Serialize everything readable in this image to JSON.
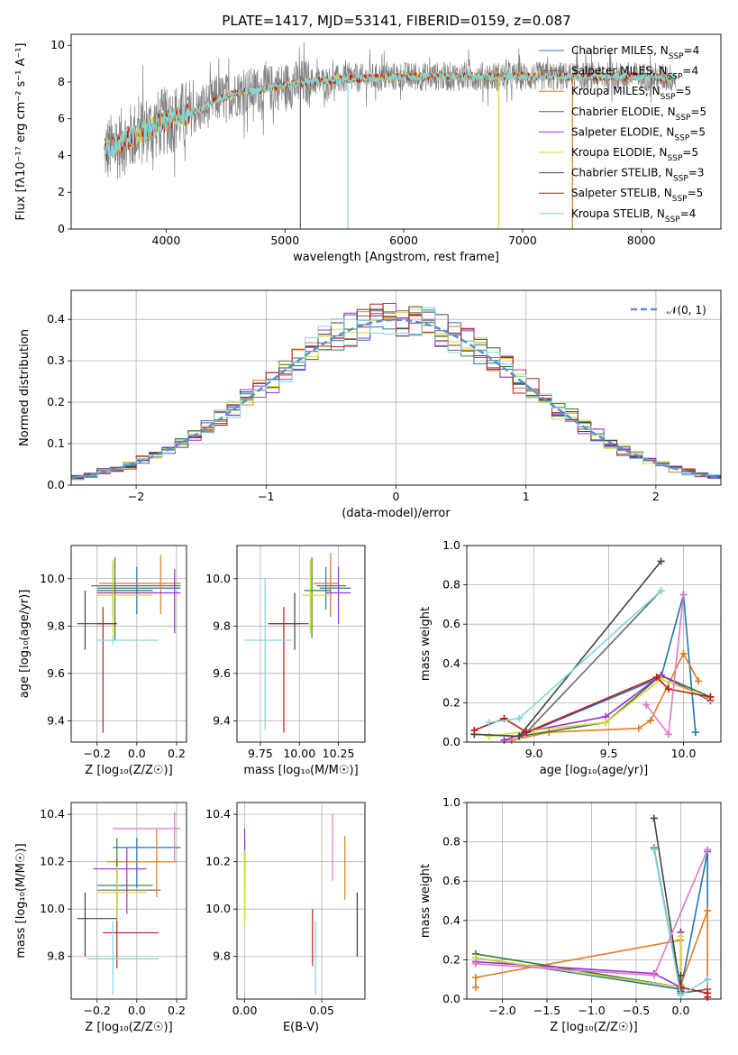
{
  "figure_title": "PLATE=1417, MJD=53141, FIBERID=0159, z=0.087",
  "series": [
    {
      "name": "Chabrier MILES",
      "nssp": "4",
      "color": "#1f77b4"
    },
    {
      "name": "Salpeter MILES",
      "nssp": "4",
      "color": "#6a6a6a"
    },
    {
      "name": "Kroupa MILES",
      "nssp": "5",
      "color": "#e07b20"
    },
    {
      "name": "Chabrier ELODIE",
      "nssp": "5",
      "color": "#2e7d32"
    },
    {
      "name": "Salpeter ELODIE",
      "nssp": "5",
      "color": "#9b30d0"
    },
    {
      "name": "Kroupa ELODIE",
      "nssp": "5",
      "color": "#d7d732"
    },
    {
      "name": "Chabrier STELIB",
      "nssp": "3",
      "color": "#444444"
    },
    {
      "name": "Salpeter STELIB",
      "nssp": "5",
      "color": "#c01818"
    },
    {
      "name": "Kroupa STELIB",
      "nssp": "4",
      "color": "#7fd6dc"
    }
  ],
  "chart_data": [
    {
      "id": "spectrum",
      "type": "line",
      "xlabel": "wavelength [Angstrom, rest frame]",
      "ylabel": "Flux [fλ10⁻¹⁷ erg cm⁻² s⁻¹ A⁻¹]",
      "xlim": [
        3200,
        8670
      ],
      "ylim": [
        0,
        10.6
      ],
      "xticks": [
        4000,
        5000,
        6000,
        7000,
        8000
      ],
      "yticks": [
        0,
        2,
        4,
        6,
        8,
        10
      ],
      "grid": false,
      "legend": "right",
      "continuum": [
        [
          3500,
          4.3
        ],
        [
          3600,
          4.6
        ],
        [
          3700,
          5.0
        ],
        [
          3800,
          5.3
        ],
        [
          3900,
          5.6
        ],
        [
          4000,
          5.9
        ],
        [
          4100,
          6.1
        ],
        [
          4200,
          6.3
        ],
        [
          4300,
          6.5
        ],
        [
          4400,
          7.0
        ],
        [
          4600,
          7.4
        ],
        [
          4800,
          7.6
        ],
        [
          5000,
          7.8
        ],
        [
          5200,
          8.0
        ],
        [
          5400,
          8.1
        ],
        [
          5600,
          8.2
        ],
        [
          6000,
          8.3
        ],
        [
          6500,
          8.3
        ],
        [
          7000,
          8.3
        ],
        [
          7500,
          8.3
        ],
        [
          8000,
          8.3
        ],
        [
          8300,
          8.2
        ]
      ],
      "data_range": [
        3480,
        8290
      ],
      "spikes": [
        {
          "x": 5130,
          "ylo": 0,
          "series": "Salpeter MILES"
        },
        {
          "x": 5530,
          "ylo": 0,
          "series": "Kroupa STELIB"
        },
        {
          "x": 6800,
          "ylo": 0,
          "series": "Kroupa ELODIE"
        },
        {
          "x": 7420,
          "ylo": 0,
          "series": "Kroupa MILES"
        }
      ]
    },
    {
      "id": "residuals",
      "type": "line",
      "xlabel": "(data-model)/error",
      "ylabel": "Normed distribution",
      "xlim": [
        -2.5,
        2.5
      ],
      "ylim": [
        0,
        0.47
      ],
      "xticks": [
        -2,
        -1,
        0,
        1,
        2
      ],
      "yticks": [
        0,
        0.1,
        0.2,
        0.3,
        0.4
      ],
      "grid": true,
      "legend": "top-right",
      "gaussian_label": "𝒩(0, 1)"
    },
    {
      "id": "age_vs_Z",
      "type": "scatter",
      "xlabel": "Z [log₁₀(Z/Z☉)]",
      "ylabel": "age  [log₁₀(age/yr)]",
      "xlim": [
        -0.33,
        0.25
      ],
      "ylim": [
        9.31,
        10.14
      ],
      "xticks": [
        -0.2,
        0.0,
        0.2
      ],
      "yticks": [
        9.4,
        9.6,
        9.8,
        10.0
      ],
      "grid": true,
      "points": [
        {
          "series": "Chabrier MILES",
          "x": 0.0,
          "xe": [
            -0.2,
            0.22
          ],
          "y": 9.96,
          "ye": [
            9.85,
            10.05
          ]
        },
        {
          "series": "Salpeter MILES",
          "x": -0.12,
          "xe": [
            -0.23,
            0.22
          ],
          "y": 9.97,
          "ye": [
            9.84,
            10.07
          ]
        },
        {
          "series": "Kroupa MILES",
          "x": 0.12,
          "xe": [
            -0.19,
            0.22
          ],
          "y": 9.98,
          "ye": [
            9.85,
            10.1
          ]
        },
        {
          "series": "Chabrier ELODIE",
          "x": -0.11,
          "xe": [
            -0.2,
            0.08
          ],
          "y": 9.95,
          "ye": [
            9.74,
            10.09
          ]
        },
        {
          "series": "Salpeter ELODIE",
          "x": 0.19,
          "xe": [
            -0.2,
            0.22
          ],
          "y": 9.94,
          "ye": [
            9.77,
            10.04
          ]
        },
        {
          "series": "Kroupa ELODIE",
          "x": -0.12,
          "xe": [
            -0.2,
            0.08
          ],
          "y": 9.93,
          "ye": [
            9.76,
            10.08
          ]
        },
        {
          "series": "Chabrier STELIB",
          "x": -0.26,
          "xe": [
            -0.3,
            -0.1
          ],
          "y": 9.81,
          "ye": [
            9.7,
            9.95
          ]
        },
        {
          "series": "Salpeter STELIB",
          "x": -0.17,
          "xe": [
            -0.2,
            -0.1
          ],
          "y": 9.81,
          "ye": [
            9.35,
            9.88
          ]
        },
        {
          "series": "Kroupa STELIB",
          "x": -0.12,
          "xe": [
            -0.2,
            0.11
          ],
          "y": 9.74,
          "ye": [
            9.72,
            9.76
          ]
        }
      ]
    },
    {
      "id": "age_vs_mass",
      "type": "scatter",
      "xlabel": "mass [log₁₀(M/M☉)]",
      "ylabel": "",
      "xlim": [
        9.6,
        10.42
      ],
      "ylim": [
        9.31,
        10.14
      ],
      "xticks": [
        9.75,
        10.0,
        10.25
      ],
      "yticks": [
        9.4,
        9.6,
        9.8,
        10.0
      ],
      "grid": true,
      "points": [
        {
          "series": "Chabrier MILES",
          "x": 10.17,
          "xe": [
            10.13,
            10.33
          ],
          "y": 9.96,
          "ye": [
            9.87,
            10.05
          ]
        },
        {
          "series": "Salpeter MILES",
          "x": 10.2,
          "xe": [
            10.11,
            10.3
          ],
          "y": 9.97,
          "ye": [
            9.84,
            10.08
          ]
        },
        {
          "series": "Kroupa MILES",
          "x": 10.2,
          "xe": [
            10.09,
            10.25
          ],
          "y": 9.98,
          "ye": [
            9.84,
            10.11
          ]
        },
        {
          "series": "Chabrier ELODIE",
          "x": 10.08,
          "xe": [
            10.03,
            10.2
          ],
          "y": 9.95,
          "ye": [
            9.75,
            10.09
          ]
        },
        {
          "series": "Salpeter ELODIE",
          "x": 10.25,
          "xe": [
            10.17,
            10.33
          ],
          "y": 9.94,
          "ye": [
            9.81,
            10.05
          ]
        },
        {
          "series": "Kroupa ELODIE",
          "x": 10.07,
          "xe": [
            10.02,
            10.2
          ],
          "y": 9.93,
          "ye": [
            9.77,
            10.08
          ]
        },
        {
          "series": "Chabrier STELIB",
          "x": 9.97,
          "xe": [
            9.8,
            10.06
          ],
          "y": 9.81,
          "ye": [
            9.7,
            9.94
          ]
        },
        {
          "series": "Salpeter STELIB",
          "x": 9.9,
          "xe": [
            9.8,
            10.0
          ],
          "y": 9.81,
          "ye": [
            9.35,
            9.88
          ]
        },
        {
          "series": "Kroupa STELIB",
          "x": 9.78,
          "xe": [
            9.65,
            9.95
          ],
          "y": 9.74,
          "ye": [
            9.36,
            10.0
          ]
        }
      ]
    },
    {
      "id": "weight_vs_age",
      "type": "line",
      "xlabel": "age  [log₁₀(age/yr)]",
      "ylabel": "mass weight",
      "xlim": [
        8.55,
        10.25
      ],
      "ylim": [
        0,
        1.0
      ],
      "xticks": [
        9.0,
        9.5,
        10.0
      ],
      "yticks": [
        0,
        0.2,
        0.4,
        0.6,
        0.8,
        1.0
      ],
      "grid": true,
      "series_points": [
        {
          "series": "Chabrier MILES",
          "x": [
            8.9,
            9.85,
            10.0,
            10.08
          ],
          "y": [
            0.03,
            0.33,
            0.75,
            0.05
          ]
        },
        {
          "series": "Salpeter MILES",
          "x": [
            8.95,
            9.85
          ],
          "y": [
            0.05,
            0.77
          ]
        },
        {
          "series": "Kroupa MILES",
          "x": [
            8.85,
            9.1,
            9.7,
            9.78,
            10.0,
            10.1
          ],
          "y": [
            0.01,
            0.05,
            0.07,
            0.11,
            0.45,
            0.31
          ]
        },
        {
          "series": "Chabrier ELODIE",
          "x": [
            8.6,
            8.9,
            9.48,
            9.85,
            10.18
          ],
          "y": [
            0.04,
            0.03,
            0.1,
            0.34,
            0.23
          ]
        },
        {
          "series": "Salpeter ELODIE",
          "x": [
            8.8,
            9.0,
            9.48,
            9.85,
            9.85,
            10.18
          ],
          "y": [
            0.01,
            0.06,
            0.13,
            0.34,
            0.34,
            0.21
          ]
        },
        {
          "series": "Kroupa ELODIE",
          "x": [
            8.7,
            9.0,
            9.48,
            9.85,
            10.18
          ],
          "y": [
            0.03,
            0.06,
            0.1,
            0.32,
            0.22
          ]
        },
        {
          "series": "Chabrier STELIB",
          "x": [
            8.6,
            8.9,
            9.85
          ],
          "y": [
            0.04,
            0.03,
            0.92
          ]
        },
        {
          "series": "Salpeter STELIB",
          "x": [
            8.6,
            8.8,
            8.95,
            9.82,
            9.9,
            10.18
          ],
          "y": [
            0.06,
            0.12,
            0.05,
            0.33,
            0.27,
            0.23
          ]
        },
        {
          "series": "Kroupa STELIB",
          "x": [
            8.7,
            8.9,
            9.85
          ],
          "y": [
            0.1,
            0.12,
            0.77
          ]
        },
        {
          "series": "_pink",
          "x": [
            9.75,
            9.9,
            10.0
          ],
          "y": [
            0.19,
            0.04,
            0.75
          ]
        }
      ]
    },
    {
      "id": "mass_vs_Z",
      "type": "scatter",
      "xlabel": "Z [log₁₀(Z/Z☉)]",
      "ylabel": "mass [log₁₀(M/M☉)]",
      "xlim": [
        -0.33,
        0.25
      ],
      "ylim": [
        9.62,
        10.45
      ],
      "xticks": [
        -0.2,
        0.0,
        0.2
      ],
      "yticks": [
        9.8,
        10.0,
        10.2,
        10.4
      ],
      "grid": true,
      "points": [
        {
          "series": "Chabrier MILES",
          "x": 0.0,
          "xe": [
            -0.12,
            0.22
          ],
          "y": 10.26,
          "ye": [
            10.09,
            10.3
          ]
        },
        {
          "series": "Salpeter MILES",
          "x": -0.1,
          "xe": [
            -0.2,
            0.12
          ],
          "y": 10.08,
          "ye": [
            9.95,
            10.21
          ]
        },
        {
          "series": "Kroupa MILES",
          "x": 0.1,
          "xe": [
            -0.15,
            0.2
          ],
          "y": 10.2,
          "ye": [
            10.05,
            10.34
          ]
        },
        {
          "series": "Chabrier ELODIE",
          "x": -0.1,
          "xe": [
            -0.2,
            0.08
          ],
          "y": 10.1,
          "ye": [
            9.95,
            10.3
          ]
        },
        {
          "series": "Salpeter ELODIE",
          "x": -0.05,
          "xe": [
            -0.22,
            0.05
          ],
          "y": 10.17,
          "ye": [
            9.98,
            10.26
          ]
        },
        {
          "series": "Kroupa ELODIE",
          "x": -0.1,
          "xe": [
            -0.2,
            0.05
          ],
          "y": 10.07,
          "ye": [
            9.95,
            10.18
          ]
        },
        {
          "series": "Chabrier STELIB",
          "x": -0.26,
          "xe": [
            -0.3,
            -0.1
          ],
          "y": 9.96,
          "ye": [
            9.8,
            10.07
          ]
        },
        {
          "series": "Salpeter STELIB",
          "x": -0.1,
          "xe": [
            -0.17,
            0.11
          ],
          "y": 9.9,
          "ye": [
            9.75,
            9.95
          ]
        },
        {
          "series": "Kroupa STELIB",
          "x": -0.12,
          "xe": [
            -0.25,
            0.11
          ],
          "y": 9.79,
          "ye": [
            9.64,
            9.95
          ]
        },
        {
          "series": "_pink",
          "x": 0.19,
          "xe": [
            -0.12,
            0.22
          ],
          "y": 10.34,
          "ye": [
            10.2,
            10.41
          ]
        }
      ]
    },
    {
      "id": "mass_vs_EBV",
      "type": "scatter",
      "xlabel": "E(B-V)",
      "ylabel": "",
      "xlim": [
        -0.005,
        0.078
      ],
      "ylim": [
        9.62,
        10.45
      ],
      "xticks": [
        0.0,
        0.05
      ],
      "yticks": [
        9.8,
        10.0,
        10.2,
        10.4
      ],
      "grid": true,
      "points": [
        {
          "series": "Chabrier MILES",
          "x": 0.0,
          "ye": [
            10.1,
            10.3
          ]
        },
        {
          "series": "Salpeter MILES",
          "x": 0.073,
          "ye": [
            9.8,
            10.07
          ]
        },
        {
          "series": "Kroupa MILES",
          "x": 0.065,
          "ye": [
            10.04,
            10.31
          ]
        },
        {
          "series": "Chabrier ELODIE",
          "x": 0.0,
          "ye": [
            9.95,
            10.25
          ]
        },
        {
          "series": "Salpeter ELODIE",
          "x": 0.0,
          "ye": [
            10.16,
            10.34
          ]
        },
        {
          "series": "Kroupa ELODIE",
          "x": 0.0,
          "ye": [
            9.93,
            10.25
          ]
        },
        {
          "series": "Chabrier STELIB",
          "x": 0.073,
          "ye": [
            9.8,
            10.07
          ]
        },
        {
          "series": "Salpeter STELIB",
          "x": 0.044,
          "ye": [
            9.76,
            10.0
          ]
        },
        {
          "series": "Kroupa STELIB",
          "x": 0.046,
          "ye": [
            9.64,
            9.95
          ]
        },
        {
          "series": "_pink",
          "x": 0.057,
          "ye": [
            10.12,
            10.4
          ]
        }
      ]
    },
    {
      "id": "weight_vs_Z",
      "type": "line",
      "xlabel": "Z [log₁₀(Z/Z☉)]",
      "ylabel": "mass weight",
      "xlim": [
        -2.4,
        0.45
      ],
      "ylim": [
        0,
        1.0
      ],
      "xticks": [
        -2.0,
        -1.5,
        -1.0,
        -0.5,
        0.0
      ],
      "yticks": [
        0,
        0.2,
        0.4,
        0.6,
        0.8,
        1.0
      ],
      "grid": true,
      "series_points": [
        {
          "series": "Chabrier MILES",
          "x": [
            -2.3,
            0.0,
            0.3,
            0.3
          ],
          "y": [
            0.21,
            0.05,
            0.75,
            0.1
          ]
        },
        {
          "series": "Salpeter MILES",
          "x": [
            -0.3,
            0.0,
            0.3
          ],
          "y": [
            0.77,
            0.03,
            0.05
          ]
        },
        {
          "series": "Kroupa MILES",
          "x": [
            -2.3,
            -2.3,
            0.0,
            0.0,
            0.3,
            0.3
          ],
          "y": [
            0.06,
            0.11,
            0.3,
            0.07,
            0.45,
            0.03
          ]
        },
        {
          "series": "Chabrier ELODIE",
          "x": [
            -2.3,
            0.0,
            0.0
          ],
          "y": [
            0.23,
            0.06,
            0.34
          ]
        },
        {
          "series": "Salpeter ELODIE",
          "x": [
            -2.3,
            -0.3,
            0.0,
            0.0
          ],
          "y": [
            0.19,
            0.13,
            0.06,
            0.34
          ]
        },
        {
          "series": "Kroupa ELODIE",
          "x": [
            -2.3,
            0.0,
            0.0
          ],
          "y": [
            0.21,
            0.06,
            0.32
          ]
        },
        {
          "series": "Chabrier STELIB",
          "x": [
            -0.3,
            0.0,
            0.0
          ],
          "y": [
            0.92,
            0.04,
            0.12
          ]
        },
        {
          "series": "Salpeter STELIB",
          "x": [
            0.0,
            0.3,
            0.3
          ],
          "y": [
            0.06,
            0.03,
            0.01
          ]
        },
        {
          "series": "Kroupa STELIB",
          "x": [
            -0.3,
            0.0,
            0.3
          ],
          "y": [
            0.76,
            0.02,
            0.1
          ]
        },
        {
          "series": "_pink",
          "x": [
            -2.3,
            -0.3,
            0.3
          ],
          "y": [
            0.18,
            0.12,
            0.76
          ]
        }
      ]
    }
  ],
  "colors": {
    "_pink": "#e377c2",
    "gaussian": "#5b8bd6",
    "cyan_overlay": "#7fd6dc"
  }
}
